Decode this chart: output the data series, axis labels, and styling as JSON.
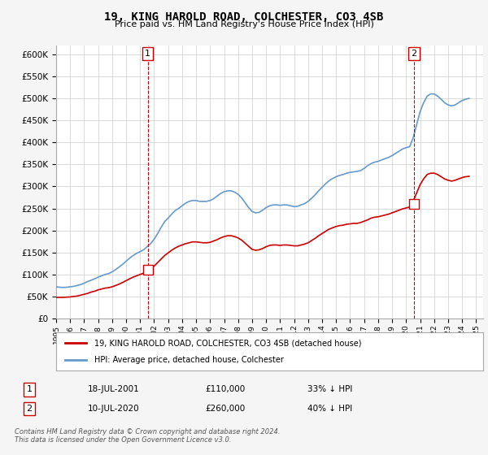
{
  "title": "19, KING HAROLD ROAD, COLCHESTER, CO3 4SB",
  "subtitle": "Price paid vs. HM Land Registry's House Price Index (HPI)",
  "legend_label_red": "19, KING HAROLD ROAD, COLCHESTER, CO3 4SB (detached house)",
  "legend_label_blue": "HPI: Average price, detached house, Colchester",
  "sale1_date": "18-JUL-2001",
  "sale1_price": 110000,
  "sale1_pct": "33% ↓ HPI",
  "sale1_year": 2001.54,
  "sale2_date": "10-JUL-2020",
  "sale2_price": 260000,
  "sale2_pct": "40% ↓ HPI",
  "sale2_year": 2020.54,
  "footer": "Contains HM Land Registry data © Crown copyright and database right 2024.\nThis data is licensed under the Open Government Licence v3.0.",
  "ylim": [
    0,
    620000
  ],
  "yticks": [
    0,
    50000,
    100000,
    150000,
    200000,
    250000,
    300000,
    350000,
    400000,
    450000,
    500000,
    550000,
    600000
  ],
  "hpi_years": [
    1995.0,
    1995.25,
    1995.5,
    1995.75,
    1996.0,
    1996.25,
    1996.5,
    1996.75,
    1997.0,
    1997.25,
    1997.5,
    1997.75,
    1998.0,
    1998.25,
    1998.5,
    1998.75,
    1999.0,
    1999.25,
    1999.5,
    1999.75,
    2000.0,
    2000.25,
    2000.5,
    2000.75,
    2001.0,
    2001.25,
    2001.5,
    2001.75,
    2002.0,
    2002.25,
    2002.5,
    2002.75,
    2003.0,
    2003.25,
    2003.5,
    2003.75,
    2004.0,
    2004.25,
    2004.5,
    2004.75,
    2005.0,
    2005.25,
    2005.5,
    2005.75,
    2006.0,
    2006.25,
    2006.5,
    2006.75,
    2007.0,
    2007.25,
    2007.5,
    2007.75,
    2008.0,
    2008.25,
    2008.5,
    2008.75,
    2009.0,
    2009.25,
    2009.5,
    2009.75,
    2010.0,
    2010.25,
    2010.5,
    2010.75,
    2011.0,
    2011.25,
    2011.5,
    2011.75,
    2012.0,
    2012.25,
    2012.5,
    2012.75,
    2013.0,
    2013.25,
    2013.5,
    2013.75,
    2014.0,
    2014.25,
    2014.5,
    2014.75,
    2015.0,
    2015.25,
    2015.5,
    2015.75,
    2016.0,
    2016.25,
    2016.5,
    2016.75,
    2017.0,
    2017.25,
    2017.5,
    2017.75,
    2018.0,
    2018.25,
    2018.5,
    2018.75,
    2019.0,
    2019.25,
    2019.5,
    2019.75,
    2020.0,
    2020.25,
    2020.5,
    2020.75,
    2021.0,
    2021.25,
    2021.5,
    2021.75,
    2022.0,
    2022.25,
    2022.5,
    2022.75,
    2023.0,
    2023.25,
    2023.5,
    2023.75,
    2024.0,
    2024.25,
    2024.5
  ],
  "hpi_values": [
    72000,
    71000,
    70500,
    71000,
    72000,
    73000,
    75000,
    77000,
    80000,
    84000,
    87000,
    90000,
    94000,
    97000,
    100000,
    102000,
    106000,
    111000,
    117000,
    123000,
    130000,
    137000,
    143000,
    148000,
    152000,
    156000,
    163000,
    170000,
    180000,
    193000,
    207000,
    220000,
    228000,
    237000,
    245000,
    250000,
    256000,
    262000,
    266000,
    268000,
    268000,
    266000,
    266000,
    266000,
    268000,
    272000,
    278000,
    284000,
    288000,
    290000,
    290000,
    287000,
    282000,
    274000,
    263000,
    252000,
    243000,
    240000,
    241000,
    246000,
    252000,
    256000,
    258000,
    258000,
    257000,
    258000,
    258000,
    256000,
    254000,
    255000,
    258000,
    261000,
    266000,
    273000,
    281000,
    290000,
    298000,
    306000,
    313000,
    318000,
    322000,
    325000,
    327000,
    330000,
    332000,
    333000,
    334000,
    336000,
    341000,
    347000,
    352000,
    355000,
    357000,
    360000,
    363000,
    366000,
    370000,
    375000,
    380000,
    385000,
    388000,
    390000,
    410000,
    440000,
    470000,
    490000,
    505000,
    510000,
    510000,
    505000,
    498000,
    490000,
    485000,
    483000,
    485000,
    490000,
    495000,
    498000,
    500000
  ],
  "red_years": [
    1995.0,
    1995.25,
    1995.5,
    1995.75,
    1996.0,
    1996.25,
    1996.5,
    1996.75,
    1997.0,
    1997.25,
    1997.5,
    1997.75,
    1998.0,
    1998.25,
    1998.5,
    1998.75,
    1999.0,
    1999.25,
    1999.5,
    1999.75,
    2000.0,
    2000.25,
    2000.5,
    2000.75,
    2001.0,
    2001.25,
    2001.5,
    2001.75,
    2002.0,
    2002.25,
    2002.5,
    2002.75,
    2003.0,
    2003.25,
    2003.5,
    2003.75,
    2004.0,
    2004.25,
    2004.5,
    2004.75,
    2005.0,
    2005.25,
    2005.5,
    2005.75,
    2006.0,
    2006.25,
    2006.5,
    2006.75,
    2007.0,
    2007.25,
    2007.5,
    2007.75,
    2008.0,
    2008.25,
    2008.5,
    2008.75,
    2009.0,
    2009.25,
    2009.5,
    2009.75,
    2010.0,
    2010.25,
    2010.5,
    2010.75,
    2011.0,
    2011.25,
    2011.5,
    2011.75,
    2012.0,
    2012.25,
    2012.5,
    2012.75,
    2013.0,
    2013.25,
    2013.5,
    2013.75,
    2014.0,
    2014.25,
    2014.5,
    2014.75,
    2015.0,
    2015.25,
    2015.5,
    2015.75,
    2016.0,
    2016.25,
    2016.5,
    2016.75,
    2017.0,
    2017.25,
    2017.5,
    2017.75,
    2018.0,
    2018.25,
    2018.5,
    2018.75,
    2019.0,
    2019.25,
    2019.5,
    2019.75,
    2020.0,
    2020.25,
    2020.5,
    2020.75,
    2021.0,
    2021.25,
    2021.5,
    2021.75,
    2022.0,
    2022.25,
    2022.5,
    2022.75,
    2023.0,
    2023.25,
    2023.5,
    2023.75,
    2024.0,
    2024.25,
    2024.5
  ],
  "red_values": [
    48000,
    48000,
    48000,
    48500,
    49000,
    50000,
    51000,
    53000,
    55000,
    57000,
    60000,
    62000,
    65000,
    67000,
    69000,
    70000,
    72000,
    75000,
    78000,
    82000,
    86000,
    90000,
    94000,
    97000,
    100000,
    103000,
    108000,
    113000,
    119000,
    127000,
    135000,
    143000,
    149000,
    155000,
    160000,
    164000,
    167000,
    170000,
    172000,
    174000,
    174000,
    173000,
    172000,
    172000,
    173000,
    176000,
    179000,
    183000,
    186000,
    188000,
    188000,
    186000,
    183000,
    178000,
    171000,
    164000,
    157000,
    155000,
    156000,
    159000,
    163000,
    166000,
    167000,
    167000,
    166000,
    167000,
    167000,
    166000,
    165000,
    165000,
    167000,
    169000,
    172000,
    177000,
    182000,
    188000,
    193000,
    198000,
    203000,
    206000,
    209000,
    211000,
    212000,
    214000,
    215000,
    216000,
    216000,
    218000,
    221000,
    224000,
    228000,
    230000,
    231000,
    233000,
    235000,
    237000,
    240000,
    243000,
    246000,
    249000,
    251000,
    253000,
    266000,
    285000,
    304000,
    317000,
    327000,
    330000,
    330000,
    327000,
    322000,
    317000,
    314000,
    312000,
    314000,
    317000,
    320000,
    322000,
    323000
  ],
  "bg_color": "#f5f5f5",
  "plot_bg_color": "#ffffff",
  "red_color": "#cc0000",
  "blue_color": "#6699cc",
  "vline_color": "#cc0000",
  "grid_color": "#cccccc"
}
